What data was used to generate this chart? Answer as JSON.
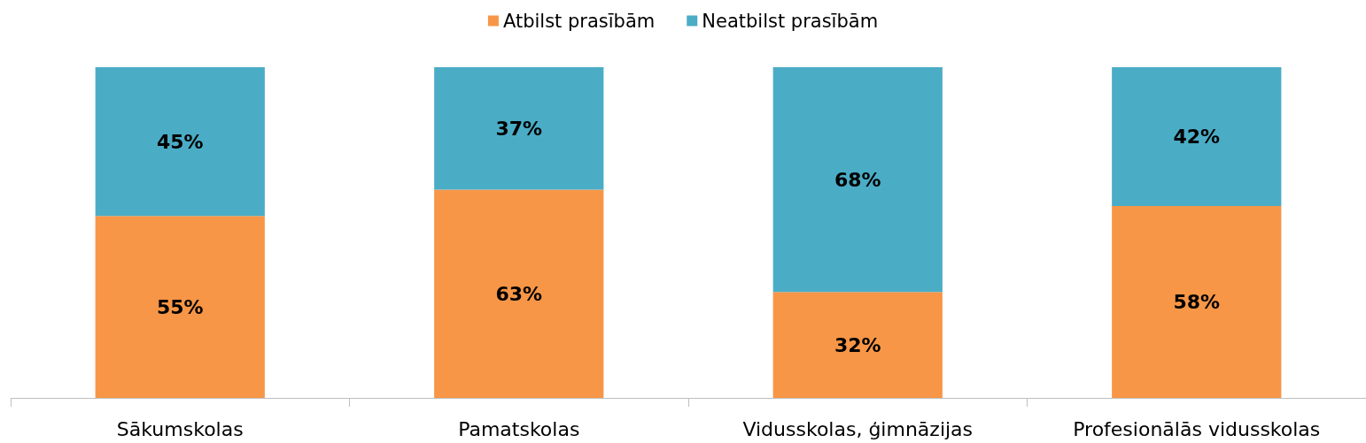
{
  "chart_data": {
    "type": "bar",
    "stacked": true,
    "categories": [
      "Sākumskolas",
      "Pamatskolas",
      "Vidusskolas, ģimnāzijas",
      "Profesionālās vidusskolas"
    ],
    "series": [
      {
        "name": "Atbilst prasībām",
        "color": "#f79646",
        "values": [
          55,
          63,
          32,
          58
        ],
        "value_labels": [
          "55%",
          "63%",
          "32%",
          "58%"
        ]
      },
      {
        "name": "Neatbilst prasībām",
        "color": "#4bacc6",
        "values": [
          45,
          37,
          68,
          42
        ],
        "value_labels": [
          "45%",
          "37%",
          "68%",
          "42%"
        ]
      }
    ],
    "ylim": [
      0,
      100
    ],
    "tick_labels": "x",
    "legend": "top"
  }
}
